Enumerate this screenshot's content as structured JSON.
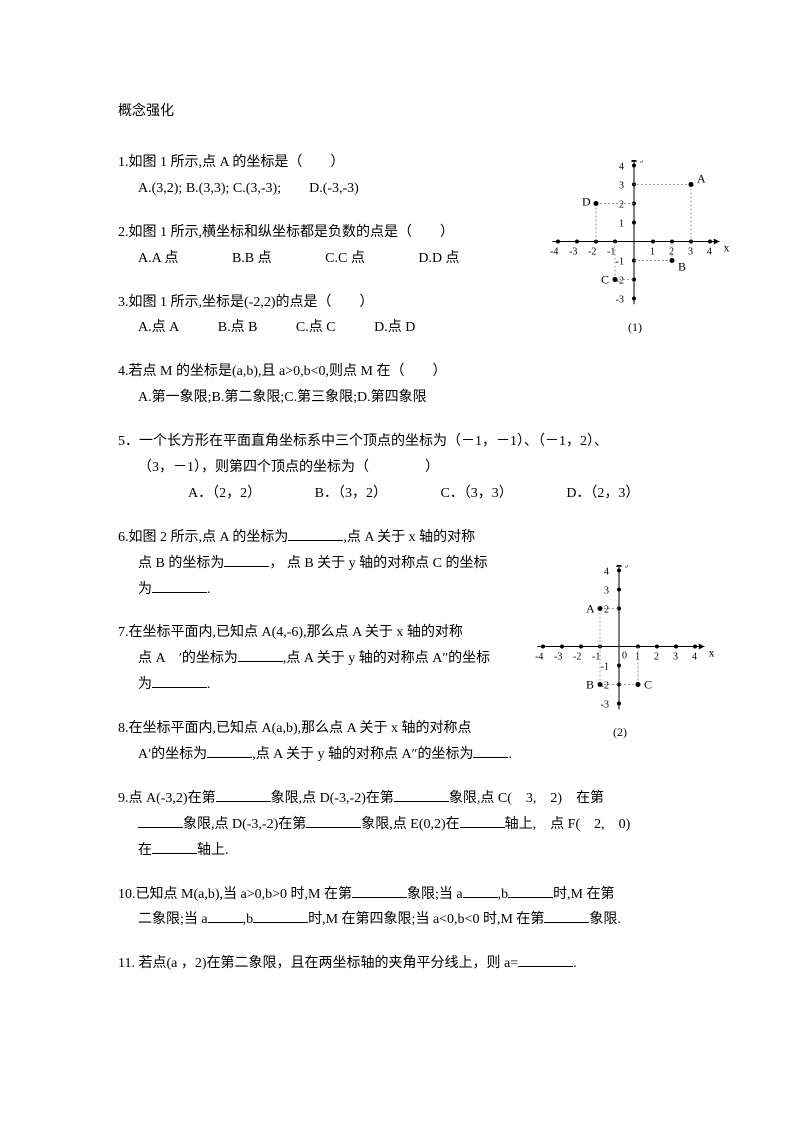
{
  "title": "概念强化",
  "q1": {
    "stem": "1.如图 1 所示,点 A 的坐标是（　　）",
    "opts": "A.(3,2); B.(3,3); C.(3,-3);　　D.(-3,-3)"
  },
  "q2": {
    "stem": "2.如图 1 所示,横坐标和纵坐标都是负数的点是（　　）",
    "a": "A.A 点",
    "b": "B.B 点",
    "c": "C.C 点",
    "d": "D.D 点"
  },
  "q3": {
    "stem": "3.如图 1 所示,坐标是(-2,2)的点是（　　）",
    "a": "A.点 A",
    "b": "B.点 B",
    "c": "C.点 C",
    "d": "D.点 D"
  },
  "q4": {
    "stem": "4.若点 M 的坐标是(a,b),且 a>0,b<0,则点 M 在（　　）",
    "opts": "A.第一象限;B.第二象限;C.第三象限;D.第四象限"
  },
  "q5": {
    "l1": "5．一个长方形在平面直角坐标系中三个顶点的坐标为（－1，－1）、（－1，2）、",
    "l2": "（3，－1），则第四个顶点的坐标为（　　　　）",
    "a": "A．（2，2）",
    "b": "B．（3，2）",
    "c": "C．（3，3）",
    "d": "D．（2，3）"
  },
  "q6": {
    "l1": "6.如图 2 所示,点 A 的坐标为",
    "l1b": ",点 A 关于 x 轴的对称",
    "l2a": "点 B 的坐标为",
    "l2b": "， 点 B 关于 y 轴的对称点 C 的坐标",
    "l3a": "为",
    "l3b": "."
  },
  "q7": {
    "l1": "7.在坐标平面内,已知点 A(4,-6),那么点 A 关于 x 轴的对称",
    "l2a": "点 A　′的坐标为",
    "l2b": ",点 A 关于 y 轴的对称点 A″的坐标",
    "l3a": "为",
    "l3b": "."
  },
  "q8": {
    "l1": "8.在坐标平面内,已知点 A(a,b),那么点 A 关于 x 轴的对称点",
    "l2a": "A′的坐标为",
    "l2b": ",点 A 关于 y 轴的对称点 A″的坐标为",
    "l2c": "."
  },
  "q9": {
    "l1a": "9.点 A(-3,2)在第",
    "l1b": "象限,点 D(-3,-2)在第",
    "l1c": "象限,点 C(　3,　2)　在第",
    "l2a": "象限,点 D(-3,-2)在第",
    "l2b": "象限,点 E(0,2)在",
    "l2c": "轴上,　点 F(　2,　0)",
    "l3a": "在",
    "l3b": "轴上."
  },
  "q10": {
    "l1a": "10.已知点 M(a,b),当 a>0,b>0 时,M 在第",
    "l1b": "象限;当 a",
    "l1c": ",b",
    "l1d": "时,M 在第",
    "l2a": "二象限;当 a",
    "l2b": ",b",
    "l2c": "时,M 在第四象限;当 a<0,b<0 时,M 在第",
    "l2d": "象限."
  },
  "q11": {
    "a": "11. 若点(a ，2)在第二象限，且在两坐标轴的夹角平分线上，则 a=",
    "b": "."
  },
  "fig1": {
    "label": "(1)",
    "xaxis_label": "x",
    "yaxis_label": "y",
    "xrange": [
      -4,
      4
    ],
    "yrange": [
      -3,
      4
    ],
    "xticks": [
      -4,
      -3,
      -2,
      -1,
      1,
      2,
      3,
      4
    ],
    "yticks_pos": [
      1,
      2,
      3,
      4
    ],
    "yticks_neg": [
      -1,
      -2,
      -3
    ],
    "axis_color": "#000000",
    "point_color": "#000000",
    "dotted_color": "#808080",
    "points": {
      "A": {
        "x": 3,
        "y": 3,
        "label": "A",
        "dx": 6,
        "dy": -2
      },
      "B": {
        "x": 2,
        "y": -1,
        "label": "B",
        "dx": 6,
        "dy": 10
      },
      "C": {
        "x": -1,
        "y": -2,
        "label": "C",
        "dx": -14,
        "dy": 4
      },
      "D": {
        "x": -2,
        "y": 2,
        "label": "D",
        "dx": -14,
        "dy": 2
      }
    }
  },
  "fig2": {
    "label": "(2)",
    "xaxis_label": "x",
    "yaxis_label": "y",
    "xrange": [
      -4,
      4
    ],
    "yrange": [
      -3,
      4
    ],
    "xticks": [
      -4,
      -3,
      -2,
      -1,
      1,
      2,
      3,
      4
    ],
    "yticks_pos": [
      2,
      3,
      4
    ],
    "yticks_neg": [
      -1,
      -2,
      -3
    ],
    "origin_label": "0",
    "axis_color": "#000000",
    "point_color": "#000000",
    "dotted_color": "#808080",
    "points": {
      "A": {
        "x": -1,
        "y": 2,
        "label": "A",
        "dx": -14,
        "dy": 4
      },
      "B": {
        "x": -1,
        "y": -2,
        "label": "B",
        "dx": -14,
        "dy": 4
      },
      "C": {
        "x": 1,
        "y": -2,
        "label": "C",
        "dx": 6,
        "dy": 4
      }
    }
  }
}
